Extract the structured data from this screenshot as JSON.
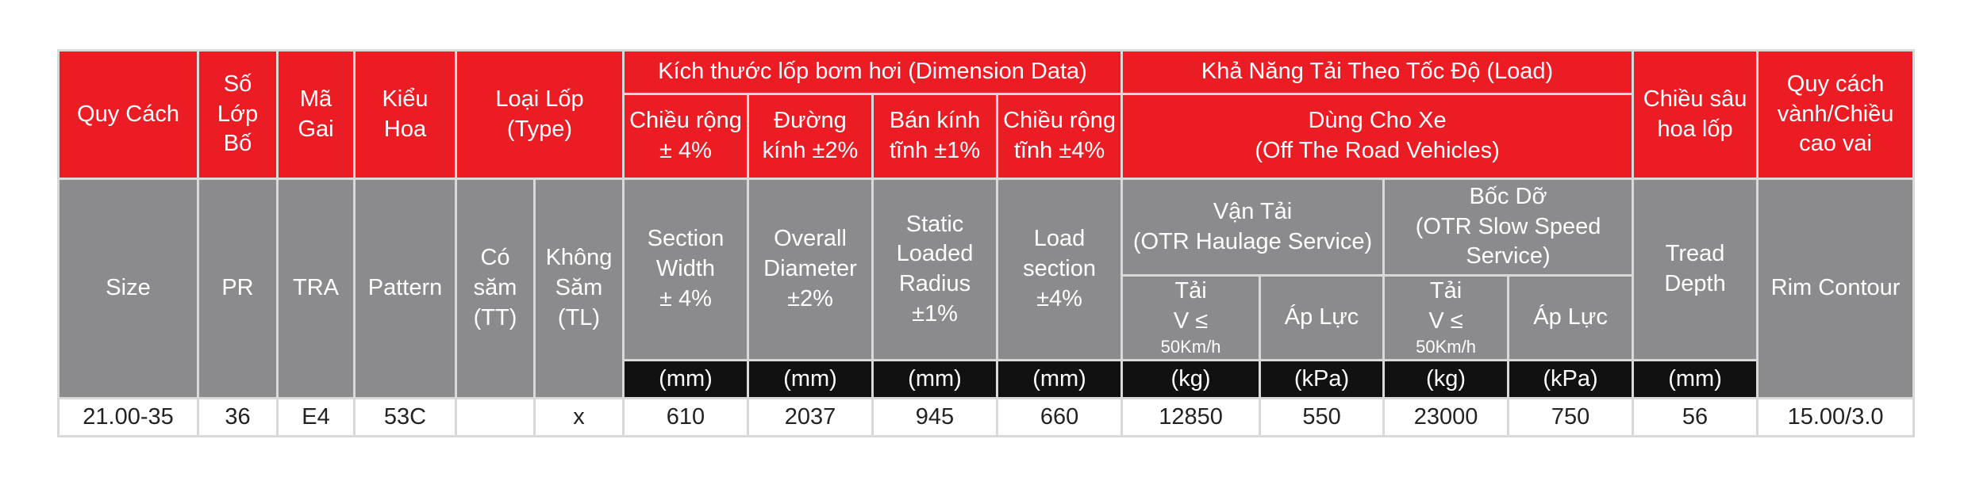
{
  "header_vi": {
    "quy_cach": "Quy Cách",
    "so_lop_bo": [
      "Số",
      "Lớp",
      "Bố"
    ],
    "ma_gai": [
      "Mã",
      "Gai"
    ],
    "kieu_hoa": [
      "Kiểu",
      "Hoa"
    ],
    "loai_lop": [
      "Loại Lốp",
      "(Type)"
    ],
    "kich_thuoc": "Kích thước lốp bơm hơi (Dimension Data)",
    "kha_nang_tai": "Khả Năng Tải Theo Tốc Độ (Load)",
    "chieu_sau": [
      "Chiều sâu",
      "hoa lốp"
    ],
    "quy_cach_vanh": [
      "Quy cách",
      "vành/Chiều",
      "cao vai"
    ],
    "chieu_rong": [
      "Chiều rộng",
      "± 4%"
    ],
    "duong_kinh": [
      "Đường",
      "kính ±2%"
    ],
    "ban_kinh": [
      "Bán kính",
      "tĩnh ±1%"
    ],
    "chieu_rong_tinh": [
      "Chiều rộng",
      "tĩnh ±4%"
    ],
    "dung_cho_xe": [
      "Dùng Cho Xe",
      "(Off The Road Vehicles)"
    ]
  },
  "header_en": {
    "size": "Size",
    "pr": "PR",
    "tra": "TRA",
    "pattern": "Pattern",
    "co_sam": [
      "Có",
      "săm",
      "(TT)"
    ],
    "khong_sam": [
      "Không",
      "Săm",
      "(TL)"
    ],
    "section_width": [
      "Section",
      "Width",
      "± 4%"
    ],
    "overall_diameter": [
      "Overall",
      "Diameter",
      "±2%"
    ],
    "static_radius": [
      "Static",
      "Loaded",
      "Radius",
      "±1%"
    ],
    "load_section": [
      "Load",
      "section",
      "±4%"
    ],
    "van_tai": [
      "Vận Tải",
      "(OTR Haulage Service)"
    ],
    "boc_do": [
      "Bốc Dỡ",
      "(OTR Slow Speed",
      "Service)"
    ],
    "tread_depth": [
      "Tread",
      "Depth"
    ],
    "rim_contour": "Rim Contour",
    "tai": [
      "Tải",
      "V ≤",
      "50Km/h"
    ],
    "ap_luc": "Áp Lực"
  },
  "units": [
    "(mm)",
    "(mm)",
    "(mm)",
    "(mm)",
    "(kg)",
    "(kPa)",
    "(kg)",
    "(kPa)",
    "(mm)"
  ],
  "rows": [
    {
      "size": "21.00-35",
      "pr": "36",
      "tra": "E4",
      "pattern": "53C",
      "tt": "",
      "tl": "x",
      "section_width": "610",
      "overall_diameter": "2037",
      "static_radius": "945",
      "load_section": "660",
      "haulage_load": "12850",
      "haulage_pressure": "550",
      "slow_load": "23000",
      "slow_pressure": "750",
      "tread_depth": "56",
      "rim": "15.00/3.0"
    }
  ],
  "colors": {
    "header_red": "#ec1c24",
    "header_gray": "#8b8b8d",
    "unit_black": "#111111",
    "border": "#d9d9d9"
  }
}
